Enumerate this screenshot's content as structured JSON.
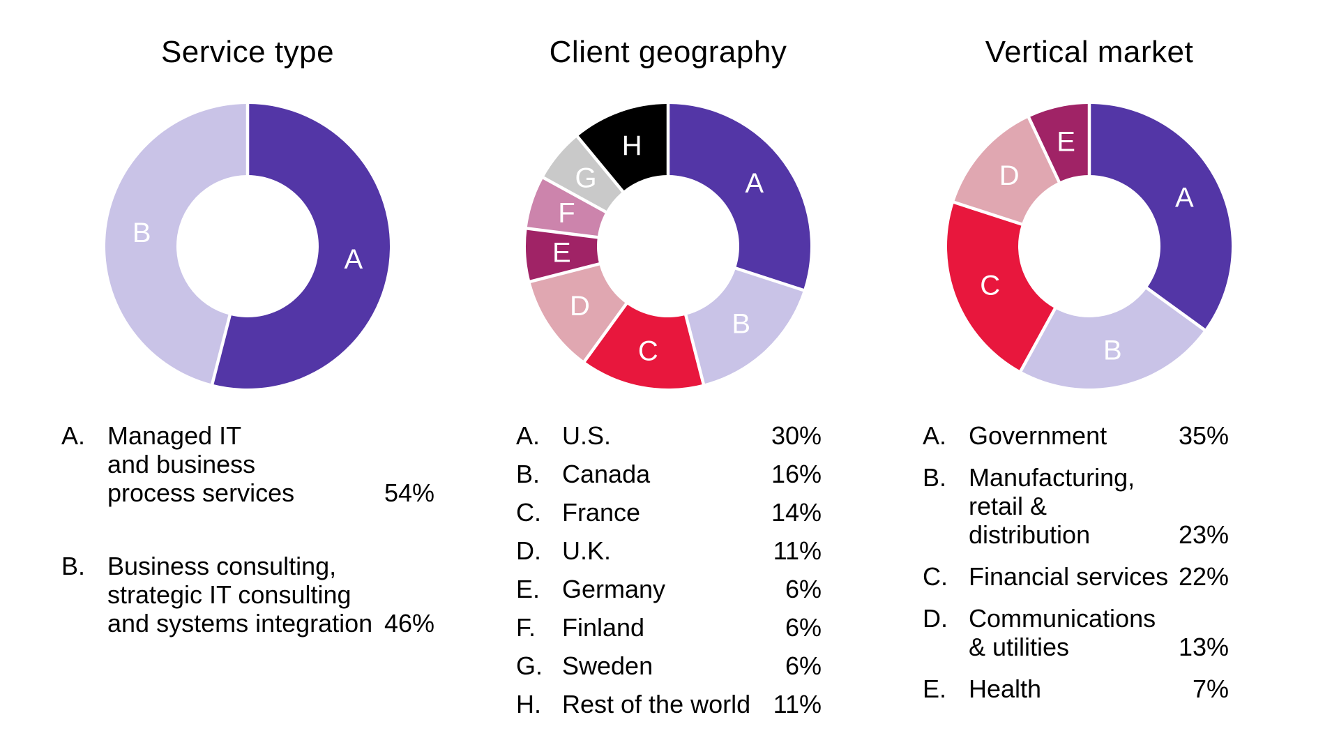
{
  "page": {
    "background": "#ffffff",
    "text_color": "#000000"
  },
  "chart_data": [
    {
      "type": "donut",
      "title": "Service type",
      "labels": [
        "A",
        "B"
      ],
      "values": [
        54,
        46
      ],
      "unit": "%",
      "colors": [
        "#5336A6",
        "#C9C3E7"
      ],
      "start_angle_deg": 0,
      "direction": "clockwise",
      "hole_ratio": 0.5,
      "legend": [
        {
          "letter": "A.",
          "lines": [
            "Managed IT",
            "and business",
            "process services"
          ],
          "pct": "54%"
        },
        {
          "letter": "B.",
          "lines": [
            "Business consulting,",
            "strategic IT consulting",
            "and systems integration"
          ],
          "pct": "46%"
        }
      ]
    },
    {
      "type": "donut",
      "title": "Client geography",
      "labels": [
        "A",
        "B",
        "C",
        "D",
        "E",
        "F",
        "G",
        "H"
      ],
      "values": [
        30,
        16,
        14,
        11,
        6,
        6,
        6,
        11
      ],
      "unit": "%",
      "colors": [
        "#5336A6",
        "#C9C3E7",
        "#E8173D",
        "#E0A7B1",
        "#A02366",
        "#CC84AC",
        "#C9C9C9",
        "#000000"
      ],
      "start_angle_deg": 0,
      "direction": "clockwise",
      "hole_ratio": 0.5,
      "legend": [
        {
          "letter": "A.",
          "lines": [
            "U.S."
          ],
          "pct": "30%"
        },
        {
          "letter": "B.",
          "lines": [
            "Canada"
          ],
          "pct": "16%"
        },
        {
          "letter": "C.",
          "lines": [
            "France"
          ],
          "pct": "14%"
        },
        {
          "letter": "D.",
          "lines": [
            "U.K."
          ],
          "pct": "11%"
        },
        {
          "letter": "E.",
          "lines": [
            "Germany"
          ],
          "pct": "6%"
        },
        {
          "letter": "F.",
          "lines": [
            "Finland"
          ],
          "pct": "6%"
        },
        {
          "letter": "G.",
          "lines": [
            "Sweden"
          ],
          "pct": "6%"
        },
        {
          "letter": "H.",
          "lines": [
            "Rest of the world"
          ],
          "pct": "11%"
        }
      ]
    },
    {
      "type": "donut",
      "title": "Vertical market",
      "labels": [
        "A",
        "B",
        "C",
        "D",
        "E"
      ],
      "values": [
        35,
        23,
        22,
        13,
        7
      ],
      "unit": "%",
      "colors": [
        "#5336A6",
        "#C9C3E7",
        "#E8173D",
        "#E0A7B1",
        "#A02366"
      ],
      "start_angle_deg": 0,
      "direction": "clockwise",
      "hole_ratio": 0.5,
      "legend": [
        {
          "letter": "A.",
          "lines": [
            "Government"
          ],
          "pct": "35%"
        },
        {
          "letter": "B.",
          "lines": [
            "Manufacturing,",
            "retail & distribution"
          ],
          "pct": "23%"
        },
        {
          "letter": "C.",
          "lines": [
            "Financial services"
          ],
          "pct": "22%"
        },
        {
          "letter": "D.",
          "lines": [
            "Communications",
            "& utilities"
          ],
          "pct": "13%"
        },
        {
          "letter": "E.",
          "lines": [
            "Health"
          ],
          "pct": "7%"
        }
      ]
    }
  ]
}
